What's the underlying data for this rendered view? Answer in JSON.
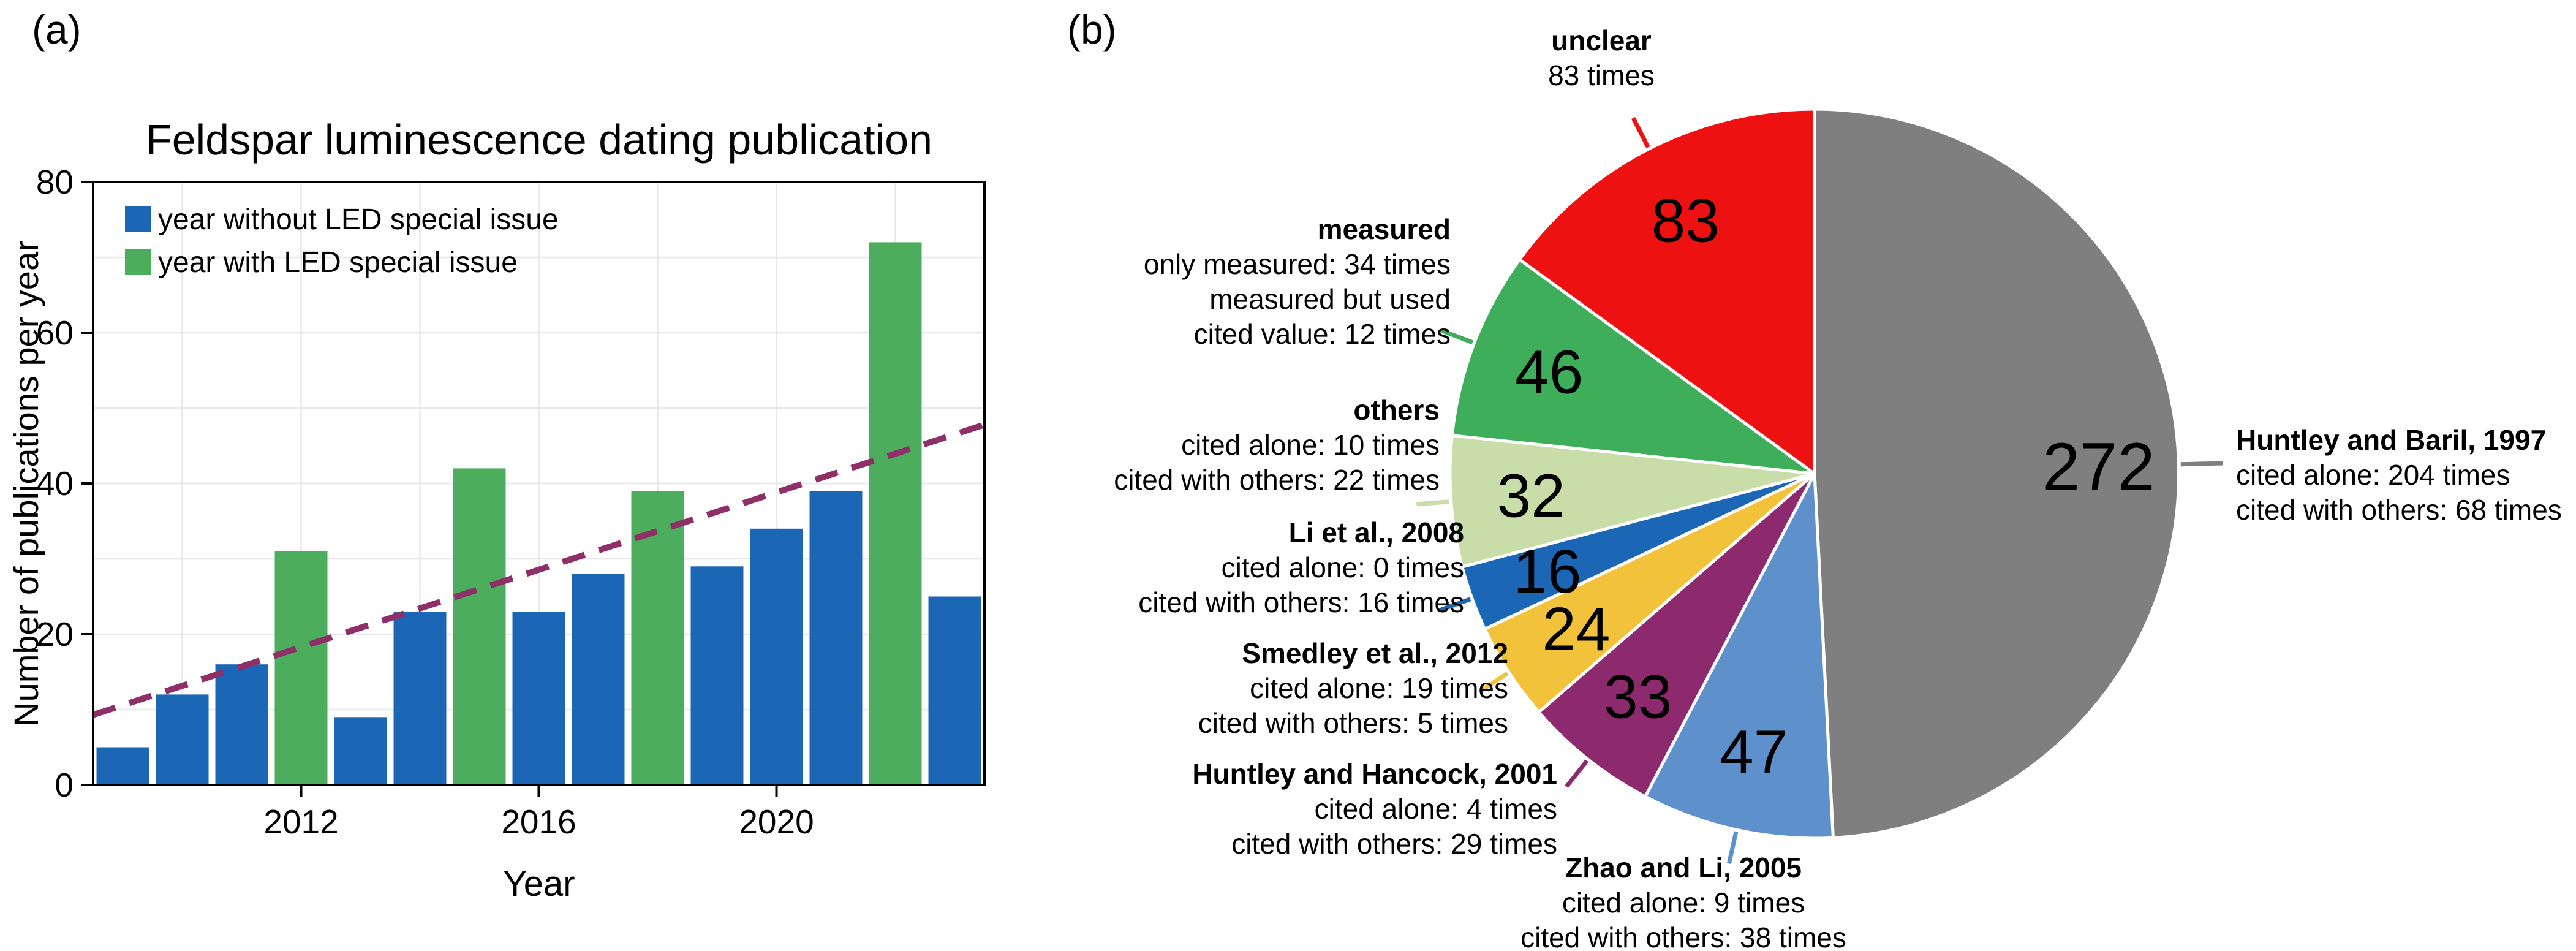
{
  "panels": {
    "a_label": "(a)",
    "b_label": "(b)"
  },
  "chart_data": [
    {
      "type": "bar",
      "title": "Feldspar luminescence dating publication",
      "xlabel": "Year",
      "ylabel": "Number of publications per year",
      "ylim": [
        0,
        80
      ],
      "ytick_step": 20,
      "y_grid_step": 10,
      "x_tick_labels": [
        2012,
        2016,
        2020
      ],
      "x_grid_years": [
        2010,
        2012,
        2014,
        2016,
        2018,
        2020,
        2022
      ],
      "categories": [
        2009,
        2010,
        2011,
        2012,
        2013,
        2014,
        2015,
        2016,
        2017,
        2018,
        2019,
        2020,
        2021,
        2022,
        2023
      ],
      "values": [
        5,
        12,
        16,
        31,
        9,
        23,
        42,
        23,
        28,
        39,
        29,
        34,
        39,
        72,
        25
      ],
      "special_issue_years": [
        2012,
        2015,
        2018,
        2022
      ],
      "legend": [
        {
          "label": "year without LED special issue",
          "color": "#1b67b5"
        },
        {
          "label": "year with LED special issue",
          "color": "#4cae5c"
        }
      ],
      "trend_line": {
        "color": "#8e2f68",
        "style": "dashed",
        "start_value": 9.3,
        "end_value": 47.8
      },
      "grid": true,
      "legend_position": "top-left",
      "axis_color": "#000000",
      "grid_color": "#e8e8e8"
    },
    {
      "type": "pie",
      "total": 553,
      "start_angle_deg": 0,
      "direction": "clockwise",
      "value_label_color": "#ffffff",
      "slices": [
        {
          "name": "Huntley and Baril, 1997",
          "value": 272,
          "color": "#7f7f7f",
          "detail_lines": [
            "cited alone: 204 times",
            "cited with others: 68 times"
          ]
        },
        {
          "name": "Zhao and Li, 2005",
          "value": 47,
          "color": "#5e90cb",
          "detail_lines": [
            "cited alone: 9 times",
            "cited with others: 38 times"
          ]
        },
        {
          "name": "Huntley and Hancock, 2001",
          "value": 33,
          "color": "#8d2a6d",
          "detail_lines": [
            "cited alone: 4 times",
            "cited with others: 29 times"
          ]
        },
        {
          "name": "Smedley et al., 2012",
          "value": 24,
          "color": "#f2c23b",
          "detail_lines": [
            "cited alone: 19 times",
            "cited with others: 5 times"
          ]
        },
        {
          "name": "Li et al., 2008",
          "value": 16,
          "color": "#1b67b5",
          "detail_lines": [
            "cited alone: 0 times",
            "cited with others: 16 times"
          ]
        },
        {
          "name": "others",
          "value": 32,
          "color": "#c9dda8",
          "detail_lines": [
            "cited alone: 10 times",
            "cited with others: 22 times"
          ]
        },
        {
          "name": "measured",
          "value": 46,
          "color": "#3fae5a",
          "detail_lines": [
            "only measured: 34 times",
            "measured but used",
            "cited value: 12 times"
          ]
        },
        {
          "name": "unclear",
          "value": 83,
          "color": "#ee1111",
          "detail_lines": [
            "83 times"
          ]
        }
      ]
    }
  ]
}
